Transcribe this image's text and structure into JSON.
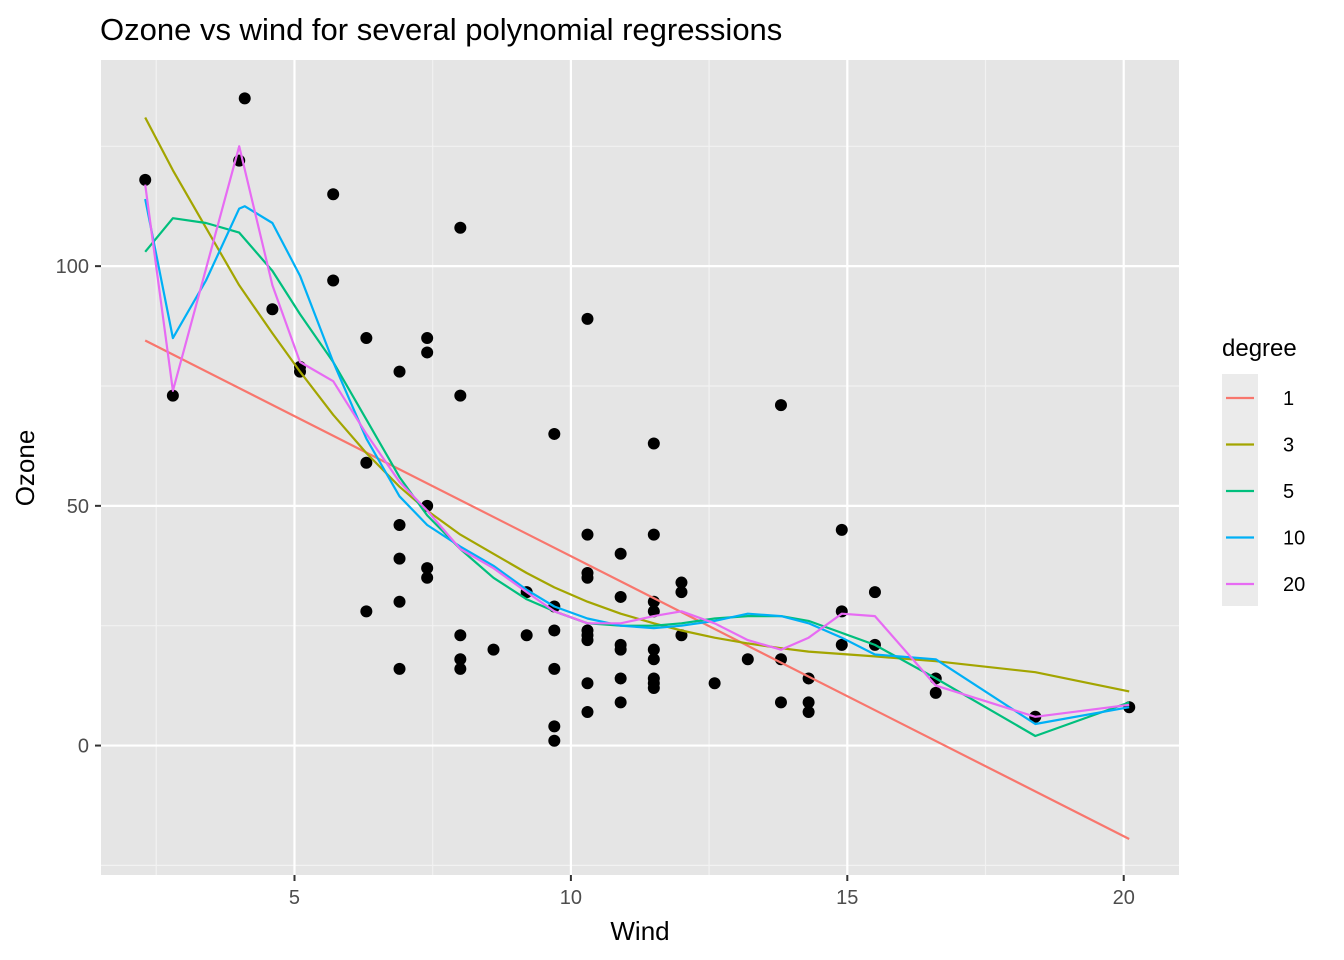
{
  "chart_data": {
    "type": "scatter",
    "title": "Ozone vs wind for several polynomial regressions",
    "xlabel": "Wind",
    "ylabel": "Ozone",
    "xlim": [
      1.5,
      21.0
    ],
    "ylim": [
      -27,
      143
    ],
    "x_ticks": [
      5,
      10,
      15,
      20
    ],
    "y_ticks": [
      0,
      50,
      100
    ],
    "x_tick_labels": [
      "5",
      "10",
      "15",
      "20"
    ],
    "y_tick_labels": [
      "0",
      "50",
      "100"
    ],
    "grid": true,
    "panel_background": "#e5e5e5",
    "grid_color": "#ffffff",
    "point_color": "#000000",
    "legend": {
      "title": "degree",
      "position": "right",
      "background": "#ebebeb"
    },
    "points": [
      [
        2.3,
        118
      ],
      [
        2.8,
        73
      ],
      [
        4.0,
        122
      ],
      [
        4.1,
        135
      ],
      [
        4.6,
        91
      ],
      [
        5.1,
        79
      ],
      [
        5.1,
        78
      ],
      [
        5.7,
        115
      ],
      [
        5.7,
        97
      ],
      [
        6.3,
        85
      ],
      [
        6.3,
        59
      ],
      [
        6.3,
        28
      ],
      [
        6.9,
        78
      ],
      [
        6.9,
        46
      ],
      [
        6.9,
        39
      ],
      [
        6.9,
        30
      ],
      [
        6.9,
        16
      ],
      [
        7.4,
        85
      ],
      [
        7.4,
        82
      ],
      [
        7.4,
        50
      ],
      [
        7.4,
        37
      ],
      [
        7.4,
        35
      ],
      [
        8.0,
        108
      ],
      [
        8.0,
        73
      ],
      [
        8.0,
        23
      ],
      [
        8.0,
        18
      ],
      [
        8.0,
        16
      ],
      [
        8.6,
        20
      ],
      [
        9.2,
        32
      ],
      [
        9.2,
        23
      ],
      [
        9.7,
        65
      ],
      [
        9.7,
        29
      ],
      [
        9.7,
        24
      ],
      [
        9.7,
        16
      ],
      [
        9.7,
        4
      ],
      [
        9.7,
        1
      ],
      [
        10.3,
        89
      ],
      [
        10.3,
        44
      ],
      [
        10.3,
        36
      ],
      [
        10.3,
        35
      ],
      [
        10.3,
        24
      ],
      [
        10.3,
        23
      ],
      [
        10.3,
        22
      ],
      [
        10.3,
        13
      ],
      [
        10.3,
        7
      ],
      [
        10.9,
        40
      ],
      [
        10.9,
        31
      ],
      [
        10.9,
        21
      ],
      [
        10.9,
        20
      ],
      [
        10.9,
        14
      ],
      [
        10.9,
        9
      ],
      [
        11.5,
        63
      ],
      [
        11.5,
        44
      ],
      [
        11.5,
        30
      ],
      [
        11.5,
        28
      ],
      [
        11.5,
        20
      ],
      [
        11.5,
        18
      ],
      [
        11.5,
        14
      ],
      [
        11.5,
        13
      ],
      [
        11.5,
        12
      ],
      [
        12.0,
        34
      ],
      [
        12.0,
        32
      ],
      [
        12.0,
        23
      ],
      [
        12.6,
        13
      ],
      [
        13.2,
        18
      ],
      [
        13.8,
        71
      ],
      [
        13.8,
        18
      ],
      [
        13.8,
        9
      ],
      [
        14.3,
        14
      ],
      [
        14.3,
        9
      ],
      [
        14.3,
        7
      ],
      [
        14.9,
        45
      ],
      [
        14.9,
        28
      ],
      [
        14.9,
        21
      ],
      [
        15.5,
        32
      ],
      [
        15.5,
        21
      ],
      [
        16.6,
        14
      ],
      [
        16.6,
        11
      ],
      [
        18.4,
        6
      ],
      [
        20.1,
        8
      ]
    ],
    "series": [
      {
        "name": "1",
        "color": "#F8766D",
        "x": [
          2.3,
          20.1
        ],
        "y": [
          84.5,
          -19.5
        ]
      },
      {
        "name": "3",
        "color": "#A3A500",
        "x": [
          2.3,
          2.8,
          3.4,
          4.0,
          4.6,
          5.1,
          5.7,
          6.3,
          6.9,
          7.4,
          8.0,
          8.6,
          9.2,
          9.7,
          10.3,
          10.9,
          11.5,
          12.0,
          12.6,
          13.2,
          13.8,
          14.3,
          14.9,
          15.5,
          16.6,
          18.4,
          20.1
        ],
        "y": [
          131,
          120,
          108,
          96,
          86,
          78,
          69,
          61,
          54,
          49,
          44,
          40,
          36,
          33,
          30,
          27.5,
          25.5,
          24,
          22.5,
          21.3,
          20.3,
          19.6,
          19.1,
          18.6,
          17.6,
          15.3,
          11.3
        ]
      },
      {
        "name": "5",
        "color": "#00BF7D",
        "x": [
          2.3,
          2.8,
          3.4,
          4.0,
          4.6,
          5.1,
          5.7,
          6.3,
          6.9,
          7.4,
          8.0,
          8.6,
          9.2,
          9.7,
          10.3,
          10.9,
          11.5,
          12.0,
          12.6,
          13.2,
          13.8,
          14.3,
          14.9,
          15.5,
          16.6,
          18.4,
          20.1
        ],
        "y": [
          103,
          110,
          109,
          107,
          99,
          90,
          80,
          68,
          56,
          48,
          41,
          35,
          30.5,
          28,
          25.5,
          25,
          25,
          25.5,
          26.5,
          27,
          27,
          26,
          23.5,
          21,
          14,
          2,
          9
        ]
      },
      {
        "name": "10",
        "color": "#00B0F6",
        "x": [
          2.3,
          2.8,
          3.4,
          4.0,
          4.1,
          4.6,
          5.1,
          5.7,
          6.3,
          6.9,
          7.4,
          8.0,
          8.6,
          9.2,
          9.7,
          10.3,
          10.9,
          11.5,
          12.0,
          12.6,
          13.2,
          13.8,
          14.3,
          14.9,
          15.5,
          16.6,
          18.4,
          20.1
        ],
        "y": [
          114,
          85,
          97,
          112,
          112.5,
          109,
          98,
          80,
          64,
          52,
          46,
          41.5,
          37.5,
          32.5,
          29,
          26.5,
          25,
          24.5,
          25,
          26,
          27.5,
          27,
          25.5,
          22.5,
          19,
          18,
          4.5,
          8
        ]
      },
      {
        "name": "20",
        "color": "#E76BF3",
        "x": [
          2.3,
          2.8,
          4.0,
          4.6,
          5.1,
          5.7,
          6.3,
          6.9,
          7.4,
          8.0,
          8.6,
          9.2,
          9.7,
          10.3,
          10.9,
          11.5,
          12.0,
          12.6,
          13.2,
          13.8,
          14.3,
          14.9,
          15.5,
          16.6,
          18.4,
          20.1
        ],
        "y": [
          117,
          74,
          125,
          96,
          80,
          76,
          65,
          55,
          49,
          41,
          37,
          32,
          28,
          25.5,
          25.5,
          27,
          28,
          25.5,
          22,
          20,
          22.5,
          27.5,
          27,
          12.5,
          6,
          8.5
        ]
      }
    ]
  }
}
